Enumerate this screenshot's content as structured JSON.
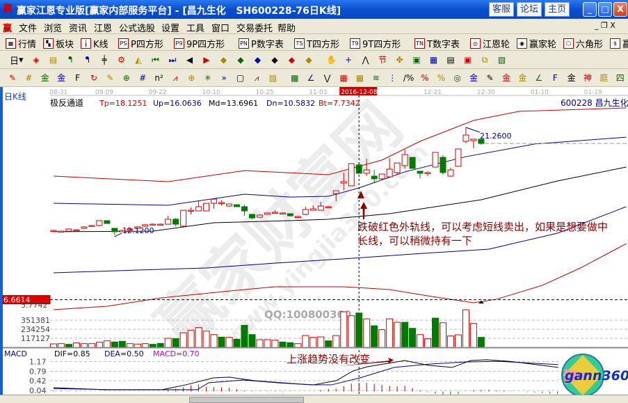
{
  "window": {
    "title": "赢家江恩专业版[赢家内部服务平台] - [昌九生化   SH600228-76日K线]",
    "buttons": [
      "客服",
      "论坛",
      "主页"
    ],
    "controls": [
      "_",
      "□",
      "X"
    ]
  },
  "menu": {
    "items": [
      "文件",
      "浏览",
      "资讯",
      "江恩",
      "公式选股",
      "设置",
      "工具",
      "窗口",
      "交易委托",
      "帮助"
    ]
  },
  "toolbar1": [
    {
      "icon": "grid-icon",
      "glyph": "▦",
      "label": "行情"
    },
    {
      "icon": "blocks-icon",
      "glyph": "▚",
      "label": "板块"
    },
    {
      "icon": "kline-icon",
      "glyph": "╽",
      "label": "K线"
    },
    {
      "icon": "p4-icon",
      "glyph": "PS",
      "label": "P四方形"
    },
    {
      "icon": "9p4-icon",
      "glyph": "P9",
      "label": "9P四方形"
    },
    {
      "icon": "pn-icon",
      "glyph": "PN",
      "label": "P数字表"
    },
    {
      "icon": "t4-icon",
      "glyph": "TS",
      "label": "T四方形"
    },
    {
      "icon": "9t4-icon",
      "glyph": "T9",
      "label": "9T四方形"
    },
    {
      "icon": "tn-icon",
      "glyph": "TN",
      "label": "T数字表"
    },
    {
      "icon": "gann-wheel-icon",
      "glyph": "◎",
      "label": "江恩轮"
    },
    {
      "icon": "winner-wheel-icon",
      "glyph": "◉",
      "label": "赢家轮"
    },
    {
      "icon": "hexagon-icon",
      "glyph": "⬡",
      "label": "六角形"
    },
    {
      "icon": "dollar-icon",
      "glyph": "$",
      "label": "赢家服务"
    }
  ],
  "toolbar2": {
    "period": "日",
    "icons": [
      "chart-type-icon",
      "doc-icon",
      "bars3-icon",
      "bars9-icon",
      "candle-icon",
      "settings-icon",
      "triangle-chart-icon",
      "first-icon",
      "last-icon",
      "prev-icon",
      "next-icon",
      "diamond-up-icon",
      "diamond-right-icon",
      "diamond-both-icon",
      "diamond-x-icon",
      "diamond-star-icon",
      "diamond-plus-icon",
      "hand-icon",
      "crosshair-icon",
      "draw-line-icon",
      "node-icon",
      "percent-chart-icon",
      "calendar-icon",
      "calculator-icon",
      "report-icon",
      "save-icon",
      "network-icon",
      "export-icon"
    ],
    "glyphs": [
      "◈",
      "▤",
      "ᖳ",
      "ᖳ",
      "╪",
      "⚙",
      "◭",
      "⏮",
      "⏭",
      "◀",
      "▶",
      "◆",
      "◆",
      "◆",
      "◆",
      "◆",
      "◆",
      "✋",
      "+",
      "⋀",
      "节",
      "✤",
      "▣",
      "▦",
      "▤",
      "▣",
      "⧉",
      "▧"
    ]
  },
  "toolbar3": {
    "icons": [
      "pen-icon",
      "hash-icon",
      "gold1-icon",
      "gold2-icon",
      "f-icon",
      "spiral-icon",
      "pen2-icon",
      "circle-grid-icon",
      "hash2-icon",
      "n2-icon",
      "fan-icon",
      "target-icon",
      "star-icon",
      "more-icon",
      "frame-icon",
      "fan2-icon",
      "box-icon",
      "box2-icon",
      "angle-icon",
      "zigzag-icon",
      "grid2-icon",
      "grid3-icon",
      "lines-icon",
      "ruler-icon",
      "pct2-icon",
      "percent-icon",
      "pct3-icon",
      "gold-circle-icon",
      "gold3-icon",
      "pen3-icon",
      "gold4-icon",
      "gold5-icon",
      "angle2-icon",
      "f2-icon",
      "gold6-icon",
      "shen-icon",
      "ting-icon",
      "four-icon"
    ],
    "glyphs": [
      "✎",
      "#",
      "金",
      "金",
      "F",
      "↻",
      "✎",
      "⊕",
      "#",
      "n²",
      "⩘",
      "⊕",
      "✳",
      "»",
      "▢",
      "⩘",
      "▨",
      "▩",
      "∠",
      "⋁",
      "▦",
      "▦",
      "≋",
      "⋮",
      "∕%",
      "%",
      "%",
      "◎",
      "金",
      "✎",
      "金",
      "金",
      "∠",
      "F",
      "金",
      "神",
      "庭",
      "四"
    ]
  },
  "chart": {
    "period_label": "日K线",
    "indicator_name": "极反通道",
    "indicator_values": [
      {
        "text": "Tp=18.1251",
        "color": "#d00000"
      },
      {
        "text": "Up=16.0636",
        "color": "#00008b"
      },
      {
        "text": "Md=13.6961",
        "color": "#000000"
      },
      {
        "text": "Dn=10.5832",
        "color": "#00008b"
      },
      {
        "text": "Bt=7.7342",
        "color": "#d00000"
      }
    ],
    "stock": "600228 昌九生化",
    "dates": [
      "08-31",
      "09-09",
      "09-22",
      "10-10",
      "10-25",
      "11-03",
      "2016-12-08",
      "12-21",
      "12-30",
      "01-10",
      "01-19"
    ],
    "date_index": [
      0,
      6,
      13,
      20,
      27,
      34,
      40,
      49,
      56,
      63,
      70
    ],
    "cursor_index": 40,
    "high_label": "21.2600",
    "low_label": "12.1200",
    "price_marker": "6.6614",
    "price_marker_value": 6.6614,
    "price_label2": "5.7742",
    "last_close": 19.9,
    "candles_ohlc_note": "[open,close,high,low]",
    "candles": [
      [
        12.53,
        12.53,
        12.59,
        12.47
      ],
      [
        12.47,
        12.47,
        12.53,
        12.42
      ],
      [
        12.47,
        12.65,
        12.71,
        12.42
      ],
      [
        12.53,
        12.59,
        12.65,
        12.47
      ],
      [
        12.71,
        12.83,
        12.89,
        12.65
      ],
      [
        12.89,
        12.95,
        13.01,
        12.83
      ],
      [
        12.95,
        13.36,
        13.36,
        12.89
      ],
      [
        13.36,
        13.12,
        13.36,
        13.12
      ],
      [
        12.71,
        12.42,
        12.71,
        12.12
      ],
      [
        12.42,
        12.53,
        12.59,
        12.42
      ],
      [
        12.59,
        12.65,
        12.71,
        12.53
      ],
      [
        12.71,
        12.83,
        12.89,
        12.65
      ],
      [
        12.89,
        13.01,
        13.06,
        12.83
      ],
      [
        13.06,
        13.06,
        13.12,
        13.01
      ],
      [
        13.06,
        13.06,
        13.12,
        13.01
      ],
      [
        13.06,
        13.48,
        13.77,
        13.06
      ],
      [
        13.48,
        13.06,
        13.59,
        12.89
      ],
      [
        12.89,
        14.24,
        14.24,
        12.89
      ],
      [
        14.18,
        14.24,
        14.48,
        13.89
      ],
      [
        14.18,
        14.54,
        15.07,
        14.18
      ],
      [
        14.18,
        14.83,
        14.83,
        14.18
      ],
      [
        14.83,
        15.18,
        15.18,
        14.36
      ],
      [
        14.89,
        14.89,
        15.07,
        14.65
      ],
      [
        14.6,
        14.77,
        14.77,
        14.54
      ],
      [
        14.71,
        14.54,
        14.71,
        14.54
      ],
      [
        14.54,
        14.18,
        14.71,
        13.77
      ],
      [
        13.89,
        13.59,
        13.89,
        13.48
      ],
      [
        13.65,
        13.83,
        13.89,
        13.65
      ],
      [
        13.89,
        14.01,
        14.07,
        13.89
      ],
      [
        14.07,
        14.07,
        14.24,
        14.01
      ],
      [
        14.01,
        14.01,
        14.07,
        13.95
      ],
      [
        13.95,
        13.77,
        13.95,
        13.71
      ],
      [
        13.71,
        13.71,
        13.77,
        13.65
      ],
      [
        13.89,
        14.3,
        14.54,
        13.83
      ],
      [
        14.24,
        14.36,
        14.66,
        14.24
      ],
      [
        14.24,
        14.6,
        14.95,
        14.24
      ],
      [
        14.54,
        14.54,
        14.6,
        14.48
      ],
      [
        15.66,
        15.89,
        15.89,
        15.01
      ],
      [
        16.54,
        16.66,
        17.43,
        15.95
      ],
      [
        16.31,
        18.19,
        18.19,
        16.31
      ],
      [
        18.08,
        17.37,
        18.19,
        17.37
      ],
      [
        17.37,
        17.66,
        18.6,
        17.13
      ],
      [
        17.13,
        16.9,
        17.66,
        16.6
      ],
      [
        16.9,
        17.31,
        17.31,
        16.78
      ],
      [
        17.07,
        17.72,
        18.66,
        17.07
      ],
      [
        17.43,
        18.25,
        18.25,
        17.31
      ],
      [
        18.02,
        18.96,
        19.37,
        17.78
      ],
      [
        18.72,
        17.78,
        18.72,
        17.78
      ],
      [
        17.55,
        17.37,
        17.55,
        16.95
      ],
      [
        17.43,
        17.43,
        17.55,
        17.13
      ],
      [
        17.9,
        19.14,
        19.14,
        17.9
      ],
      [
        18.72,
        17.43,
        18.9,
        17.25
      ],
      [
        17.13,
        17.66,
        17.85,
        17.07
      ],
      [
        17.96,
        19.43,
        19.43,
        17.96
      ],
      [
        20.08,
        20.61,
        21.26,
        19.9
      ],
      [
        20.14,
        20.26,
        20.26,
        19.49
      ],
      [
        20.26,
        19.9,
        20.26,
        19.78
      ]
    ],
    "bands": [
      {
        "color": "#c00000",
        "points": [
          [
            0,
            17.13
          ],
          [
            15,
            16.66
          ],
          [
            25,
            17.6
          ],
          [
            36,
            17.25
          ],
          [
            43,
            18.49
          ],
          [
            48,
            20.08
          ],
          [
            55,
            21.85
          ],
          [
            61,
            22.62
          ],
          [
            75,
            22.91
          ]
        ]
      },
      {
        "color": "#00008b",
        "points": [
          [
            0,
            14.83
          ],
          [
            15,
            14.66
          ],
          [
            25,
            15.6
          ],
          [
            31,
            15.36
          ],
          [
            36,
            15.42
          ],
          [
            40,
            16.13
          ],
          [
            46,
            17.49
          ],
          [
            54,
            18.78
          ],
          [
            63,
            19.85
          ],
          [
            75,
            20.43
          ]
        ]
      },
      {
        "color": "#000000",
        "points": [
          [
            0,
            12.42
          ],
          [
            13,
            12.47
          ],
          [
            21,
            13.18
          ],
          [
            31,
            13.36
          ],
          [
            36,
            13.48
          ],
          [
            44,
            13.95
          ],
          [
            56,
            15.13
          ],
          [
            66,
            16.72
          ],
          [
            75,
            17.9
          ]
        ]
      },
      {
        "color": "#00008b",
        "points": [
          [
            0,
            8.94
          ],
          [
            11,
            9.17
          ],
          [
            20,
            9.35
          ],
          [
            29,
            9.76
          ],
          [
            38,
            10.12
          ],
          [
            47,
            10.53
          ],
          [
            57,
            10.94
          ],
          [
            66,
            12.3
          ],
          [
            75,
            14.54
          ]
        ]
      },
      {
        "color": "#c00000",
        "points": [
          [
            0,
            5.81
          ],
          [
            7,
            6.11
          ],
          [
            14,
            6.81
          ],
          [
            23,
            7.4
          ],
          [
            29,
            7.76
          ],
          [
            38,
            7.76
          ],
          [
            44,
            7.52
          ],
          [
            49,
            6.99
          ],
          [
            55,
            6.4
          ],
          [
            58,
            6.7
          ],
          [
            64,
            7.88
          ],
          [
            69,
            9.35
          ],
          [
            75,
            11.41
          ]
        ]
      }
    ],
    "annotation_lines": [
      "跌破红色外轨线，可以考虑短线卖出，如果是想要做中",
      "长线，可以稍微持有一下"
    ],
    "annotation_color": "#8b0000"
  },
  "volume": {
    "ticks": [
      "351381",
      "234254",
      "117127"
    ],
    "tick_values": [
      351381,
      234254,
      117127
    ],
    "qq_text": "QQ:100800360",
    "values": [
      45000,
      48000,
      39000,
      57000,
      48000,
      48000,
      66000,
      84000,
      69000,
      78000,
      48000,
      42000,
      48000,
      39000,
      51000,
      117000,
      114000,
      189000,
      219000,
      255000,
      210000,
      165000,
      132000,
      129000,
      105000,
      285000,
      165000,
      99000,
      99000,
      93000,
      69000,
      60000,
      48000,
      153000,
      129000,
      135000,
      84000,
      153000,
      460000,
      408000,
      444000,
      369000,
      279000,
      228000,
      369000,
      324000,
      324000,
      246000,
      165000,
      111000,
      378000,
      318000,
      147000,
      162000,
      486000,
      309000,
      129000
    ],
    "up": [
      1,
      1,
      0,
      1,
      1,
      1,
      1,
      1,
      0,
      0,
      1,
      1,
      1,
      0,
      0,
      1,
      0,
      1,
      1,
      1,
      1,
      1,
      0,
      1,
      0,
      0,
      0,
      1,
      1,
      1,
      0,
      0,
      1,
      1,
      1,
      1,
      0,
      1,
      1,
      1,
      0,
      1,
      0,
      1,
      1,
      1,
      0,
      0,
      1,
      1,
      0,
      1,
      1,
      1,
      1,
      1,
      0
    ]
  },
  "macd": {
    "label": "MACD",
    "dif_text": "DIF=0.85",
    "dea_text": "DEA=0.50",
    "macd_text": "MACD=0.70",
    "ticks": [
      "1.17",
      "0.79",
      "0.42",
      "0.04"
    ],
    "tick_values": [
      1.17,
      0.79,
      0.42,
      0.04
    ],
    "dif": [
      [
        0,
        0.15
      ],
      [
        6.6,
        0.07
      ],
      [
        14.2,
        0.07
      ],
      [
        17.3,
        0.26
      ],
      [
        20.9,
        0.53
      ],
      [
        23,
        0.56
      ],
      [
        26.4,
        0.42
      ],
      [
        32.4,
        0.29
      ],
      [
        34,
        0.26
      ],
      [
        37,
        0.42
      ],
      [
        39.2,
        0.8
      ],
      [
        41,
        0.96
      ],
      [
        46,
        1.21
      ],
      [
        49.2,
        1.02
      ],
      [
        52.2,
        0.94
      ],
      [
        54.6,
        1.21
      ],
      [
        56.7,
        1.24
      ],
      [
        59.7,
        1.18
      ],
      [
        66.1,
        0.94
      ]
    ],
    "dea": [
      [
        0,
        0.12
      ],
      [
        7.6,
        0.07
      ],
      [
        18.8,
        0.07
      ],
      [
        20.3,
        0.34
      ],
      [
        24.8,
        0.45
      ],
      [
        29.4,
        0.34
      ],
      [
        33.7,
        0.26
      ],
      [
        36.4,
        0.26
      ],
      [
        40.1,
        0.53
      ],
      [
        44.6,
        0.94
      ],
      [
        49.2,
        1.07
      ],
      [
        53.7,
        1.15
      ],
      [
        58.3,
        1.18
      ],
      [
        66.1,
        1.05
      ]
    ],
    "annotation": "上涨趋势没有改变"
  },
  "watermark": {
    "text1": "赢家财富网",
    "text2": "www.yingjia360.com",
    "logo_text": "gann360"
  },
  "colors": {
    "up": "#d00000",
    "down": "#007a00",
    "titlebar": "#0a4fd0"
  }
}
